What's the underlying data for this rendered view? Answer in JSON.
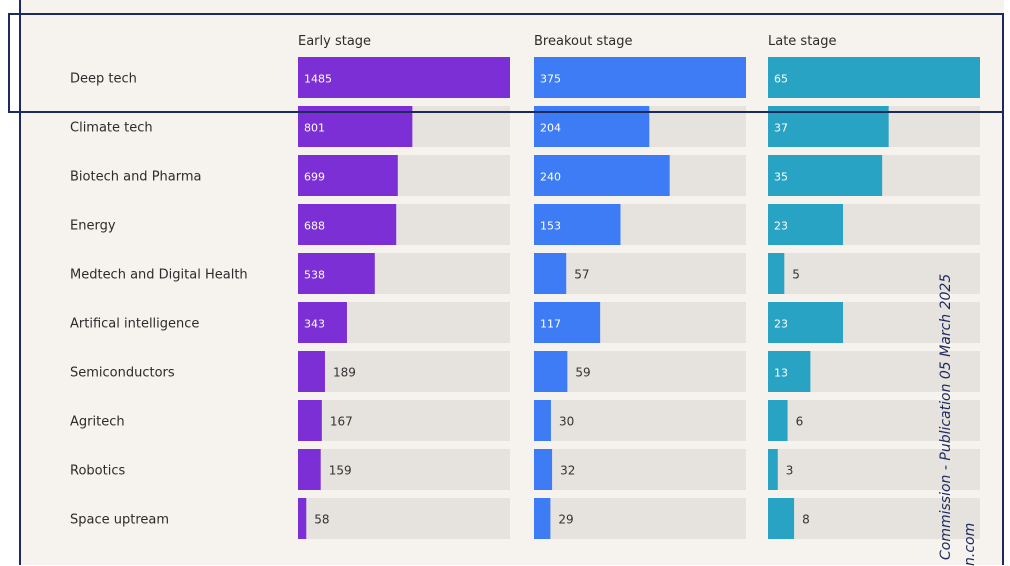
{
  "chart_data": {
    "type": "bar",
    "categories": [
      "Deep tech",
      "Climate tech",
      "Biotech and Pharma",
      "Energy",
      "Medtech and Digital Health",
      "Artifical intelligence",
      "Semiconductors",
      "Agritech",
      "Robotics",
      "Space uptream"
    ],
    "series": [
      {
        "name": "Early stage",
        "color": "#7b2fd4",
        "max": 1485,
        "values": [
          1485,
          801,
          699,
          688,
          538,
          343,
          189,
          167,
          159,
          58
        ]
      },
      {
        "name": "Breakout stage",
        "color": "#3d7cf5",
        "max": 375,
        "values": [
          375,
          204,
          240,
          153,
          57,
          117,
          59,
          30,
          32,
          29
        ]
      },
      {
        "name": "Late stage",
        "color": "#29a3c4",
        "max": 65,
        "values": [
          65,
          37,
          35,
          23,
          5,
          23,
          13,
          6,
          3,
          8
        ]
      }
    ],
    "track_color": "#e6e3de",
    "grid": false
  },
  "watermark": {
    "line1": "Commission - Publication 05 March 2025",
    "line2": "n.com"
  }
}
